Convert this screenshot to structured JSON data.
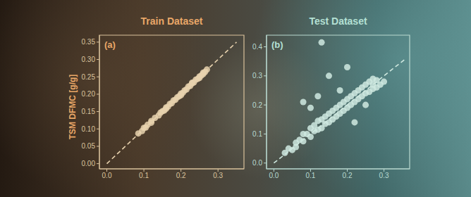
{
  "chart_data": [
    {
      "type": "scatter",
      "title": "Train Dataset",
      "ylabel": "TSM DFMC [g/g]",
      "annotations": [
        "(a)"
      ],
      "xlim": [
        -0.02,
        0.37
      ],
      "ylim": [
        -0.015,
        0.37
      ],
      "xticks": [
        {
          "value": 0,
          "label": "0.0"
        },
        {
          "value": 0.1,
          "label": "0.1"
        },
        {
          "value": 0.2,
          "label": "0.2"
        },
        {
          "value": 0.3,
          "label": "0.3"
        }
      ],
      "yticks": [
        {
          "value": 0,
          "label": "0.00"
        },
        {
          "value": 0.05,
          "label": "0.05"
        },
        {
          "value": 0.1,
          "label": "0.10"
        },
        {
          "value": 0.15,
          "label": "0.15"
        },
        {
          "value": 0.2,
          "label": "0.20"
        },
        {
          "value": 0.25,
          "label": "0.25"
        },
        {
          "value": 0.3,
          "label": "0.30"
        },
        {
          "value": 0.35,
          "label": "0.35"
        }
      ],
      "series": [
        {
          "type": "scatter",
          "color": "#e8d2ae",
          "marker": "circle",
          "x": [
            0.085,
            0.095,
            0.1,
            0.105,
            0.11,
            0.12,
            0.13,
            0.14,
            0.145,
            0.15,
            0.155,
            0.16,
            0.165,
            0.17,
            0.175,
            0.18,
            0.185,
            0.19,
            0.195,
            0.2,
            0.205,
            0.21,
            0.215,
            0.22,
            0.225,
            0.23,
            0.235,
            0.24,
            0.245,
            0.25,
            0.255,
            0.26,
            0.265,
            0.27,
            0.12,
            0.16,
            0.2,
            0.23,
            0.25,
            0.26
          ],
          "values": [
            0.087,
            0.094,
            0.103,
            0.104,
            0.112,
            0.118,
            0.132,
            0.139,
            0.147,
            0.151,
            0.153,
            0.162,
            0.164,
            0.172,
            0.174,
            0.182,
            0.184,
            0.191,
            0.194,
            0.202,
            0.204,
            0.211,
            0.214,
            0.222,
            0.224,
            0.231,
            0.234,
            0.242,
            0.244,
            0.251,
            0.254,
            0.262,
            0.264,
            0.271,
            0.123,
            0.158,
            0.197,
            0.233,
            0.247,
            0.258
          ]
        },
        {
          "type": "line",
          "line_style": "dashed",
          "color": "#e8d2ae",
          "x": [
            0,
            0.35
          ],
          "values": [
            0,
            0.35
          ]
        }
      ]
    },
    {
      "type": "scatter",
      "title": "Test Dataset",
      "annotations": [
        "(b)"
      ],
      "xlim": [
        -0.02,
        0.37
      ],
      "ylim": [
        -0.02,
        0.44
      ],
      "xticks": [
        {
          "value": 0,
          "label": "0.0"
        },
        {
          "value": 0.1,
          "label": "0.1"
        },
        {
          "value": 0.2,
          "label": "0.2"
        },
        {
          "value": 0.3,
          "label": "0.3"
        }
      ],
      "yticks": [
        {
          "value": 0,
          "label": "0.0"
        },
        {
          "value": 0.1,
          "label": "0.1"
        },
        {
          "value": 0.2,
          "label": "0.2"
        },
        {
          "value": 0.3,
          "label": "0.3"
        },
        {
          "value": 0.4,
          "label": "0.4"
        }
      ],
      "series": [
        {
          "type": "scatter",
          "color": "#cfe9e0",
          "marker": "circle",
          "x": [
            0.03,
            0.04,
            0.05,
            0.06,
            0.06,
            0.07,
            0.08,
            0.08,
            0.09,
            0.1,
            0.1,
            0.11,
            0.11,
            0.12,
            0.12,
            0.13,
            0.13,
            0.14,
            0.14,
            0.15,
            0.15,
            0.16,
            0.16,
            0.17,
            0.17,
            0.18,
            0.18,
            0.19,
            0.19,
            0.2,
            0.2,
            0.21,
            0.21,
            0.22,
            0.22,
            0.23,
            0.23,
            0.24,
            0.24,
            0.25,
            0.25,
            0.26,
            0.26,
            0.27,
            0.27,
            0.28,
            0.28,
            0.29,
            0.3,
            0.13,
            0.15,
            0.2,
            0.08,
            0.1,
            0.12,
            0.27,
            0.22,
            0.18,
            0.25
          ],
          "values": [
            0.035,
            0.05,
            0.045,
            0.07,
            0.055,
            0.08,
            0.075,
            0.1,
            0.1,
            0.09,
            0.12,
            0.11,
            0.13,
            0.115,
            0.145,
            0.12,
            0.15,
            0.135,
            0.16,
            0.14,
            0.17,
            0.15,
            0.18,
            0.16,
            0.19,
            0.17,
            0.2,
            0.18,
            0.21,
            0.19,
            0.22,
            0.2,
            0.23,
            0.21,
            0.24,
            0.22,
            0.25,
            0.23,
            0.26,
            0.24,
            0.27,
            0.245,
            0.28,
            0.255,
            0.27,
            0.26,
            0.285,
            0.27,
            0.28,
            0.415,
            0.3,
            0.33,
            0.21,
            0.19,
            0.23,
            0.29,
            0.14,
            0.25,
            0.2
          ]
        },
        {
          "type": "line",
          "line_style": "dashed",
          "color": "#cfe9e0",
          "x": [
            0,
            0.36
          ],
          "values": [
            0,
            0.36
          ]
        }
      ]
    }
  ]
}
